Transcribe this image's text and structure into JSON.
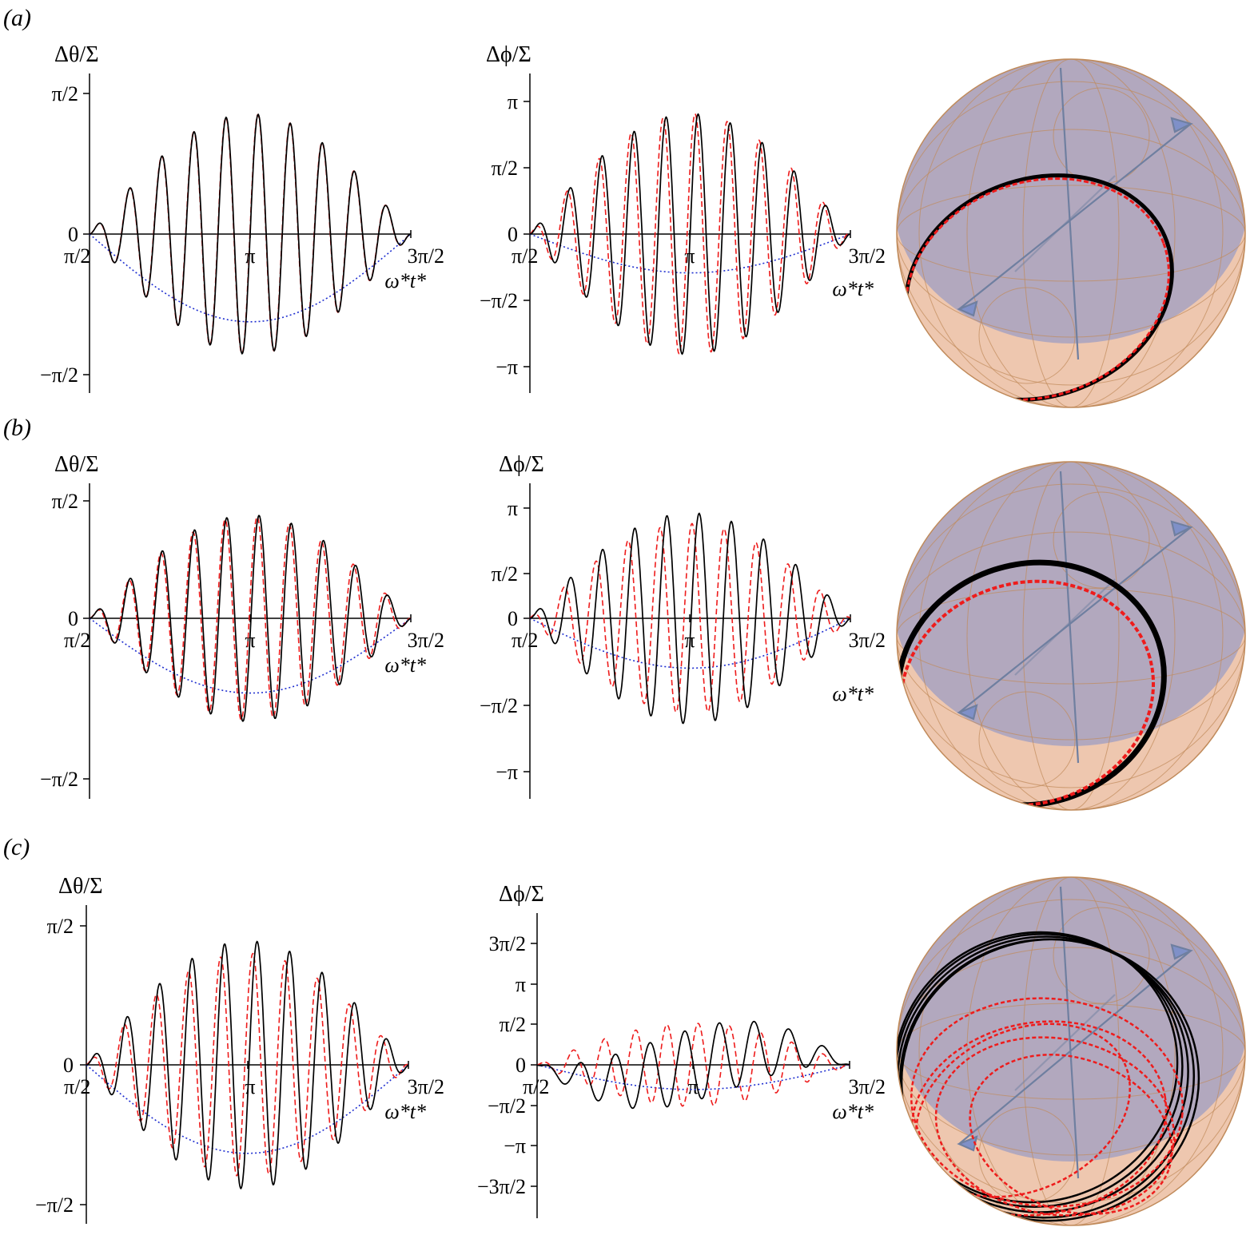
{
  "colors": {
    "black_series": "#000000",
    "red_series": "#ee1c1c",
    "blue_envelope": "#1f2fd0",
    "sphere_fill": "#e8b494",
    "sphere_band": "#9d9dc3",
    "sphere_grid": "#c08a5a",
    "sphere_axis": "#6f7fa0"
  },
  "panels": [
    {
      "label": "(a)",
      "theta_plot": {
        "ylabel": "Δθ/Σ",
        "ytick_labels": [
          "π/2",
          "0",
          "−π/2"
        ],
        "xtick_labels": [
          "π/2",
          "π",
          "3π/2"
        ],
        "xunit": "ω*t*"
      },
      "phi_plot": {
        "ylabel": "Δϕ/Σ",
        "ytick_labels": [
          "π",
          "π/2",
          "0",
          "−π/2",
          "−π"
        ],
        "xtick_labels": [
          "π/2",
          "π",
          "3π/2"
        ],
        "xunit": "ω*t*"
      }
    },
    {
      "label": "(b)",
      "theta_plot": {
        "ylabel": "Δθ/Σ",
        "ytick_labels": [
          "π/2",
          "0",
          "−π/2"
        ],
        "xtick_labels": [
          "π/2",
          "π",
          "3π/2"
        ],
        "xunit": "ω*t*"
      },
      "phi_plot": {
        "ylabel": "Δϕ/Σ",
        "ytick_labels": [
          "π",
          "π/2",
          "0",
          "−π/2",
          "−π"
        ],
        "xtick_labels": [
          "π/2",
          "π",
          "3π/2"
        ],
        "xunit": "ω*t*"
      }
    },
    {
      "label": "(c)",
      "theta_plot": {
        "ylabel": "Δθ/Σ",
        "ytick_labels": [
          "π/2",
          "0",
          "−π/2"
        ],
        "xtick_labels": [
          "π/2",
          "π",
          "3π/2"
        ],
        "xunit": "ω*t*"
      },
      "phi_plot": {
        "ylabel": "Δϕ/Σ",
        "ytick_labels": [
          "3π/2",
          "π",
          "π/2",
          "0",
          "−π/2",
          "−π",
          "−3π/2"
        ],
        "xtick_labels": [
          "π/2",
          "π",
          "3π/2"
        ],
        "xunit": "ω*t*"
      }
    }
  ],
  "chart_data": [
    {
      "panel": "(a)",
      "type": "line",
      "ylabel": "Δθ/Σ",
      "xlabel": "ω*t*",
      "xlim": [
        1.5708,
        4.7124
      ],
      "ylim": [
        -1.85,
        1.85
      ],
      "yticks": [
        1.5708,
        0,
        -1.5708
      ],
      "xticks": [
        1.5708,
        3.1416,
        4.7124
      ],
      "series": [
        {
          "role": "black solid",
          "style": "solid",
          "cycles": 10,
          "peak": 1.34,
          "phase": 0.0,
          "freq_shift": 0.0,
          "drift": 0
        },
        {
          "role": "red dashed",
          "style": "dashed",
          "cycles": 10,
          "peak": 1.34,
          "phase": 0.05,
          "freq_shift": 0.0,
          "drift": 0
        },
        {
          "role": "blue dotted envelope",
          "style": "dotted",
          "min": -0.98
        }
      ]
    },
    {
      "panel": "(a)",
      "type": "line",
      "ylabel": "Δϕ/Σ",
      "xlabel": "ω*t*",
      "xlim": [
        1.5708,
        4.7124
      ],
      "ylim": [
        -3.55,
        3.55
      ],
      "yticks": [
        3.1416,
        1.5708,
        0,
        -1.5708,
        -3.1416
      ],
      "xticks": [
        1.5708,
        3.1416,
        4.7124
      ],
      "series": [
        {
          "role": "black solid",
          "style": "solid",
          "cycles": 10,
          "peak": 2.85,
          "phase": 0.0,
          "freq_shift": 0.0,
          "drift": 0
        },
        {
          "role": "red dashed",
          "style": "dashed",
          "cycles": 10,
          "peak": 2.85,
          "phase": 0.6,
          "freq_shift": 0.0,
          "drift": 0
        },
        {
          "role": "blue dotted envelope",
          "style": "dotted",
          "min": -0.92
        }
      ]
    },
    {
      "panel": "(b)",
      "type": "line",
      "ylabel": "Δθ/Σ",
      "xlabel": "ω*t*",
      "xlim": [
        1.5708,
        4.7124
      ],
      "ylim": [
        -1.85,
        1.85
      ],
      "yticks": [
        1.5708,
        0,
        -1.5708
      ],
      "xticks": [
        1.5708,
        3.1416,
        4.7124
      ],
      "series": [
        {
          "role": "black solid",
          "style": "solid",
          "cycles": 10,
          "peak": 1.38,
          "phase": 0.0,
          "freq_shift": -0.05,
          "drift": 0
        },
        {
          "role": "red dashed",
          "style": "dashed",
          "cycles": 10,
          "peak": 1.36,
          "phase": 0.2,
          "freq_shift": 0.0,
          "drift": 0
        },
        {
          "role": "blue dotted envelope",
          "style": "dotted",
          "min": -1.0
        }
      ]
    },
    {
      "panel": "(b)",
      "type": "line",
      "ylabel": "Δϕ/Σ",
      "xlabel": "ω*t*",
      "xlim": [
        1.5708,
        4.7124
      ],
      "ylim": [
        -3.55,
        3.55
      ],
      "yticks": [
        3.1416,
        1.5708,
        0,
        -1.5708,
        -3.1416
      ],
      "xticks": [
        1.5708,
        3.1416,
        4.7124
      ],
      "series": [
        {
          "role": "black solid",
          "style": "solid",
          "cycles": 10,
          "peak": 3.0,
          "phase": 0.0,
          "freq_shift": -0.06,
          "drift": 0
        },
        {
          "role": "red dashed",
          "style": "dashed",
          "cycles": 10,
          "peak": 2.7,
          "phase": 1.2,
          "freq_shift": 0.0,
          "drift": 0
        },
        {
          "role": "blue dotted envelope",
          "style": "dotted",
          "min": -1.42
        }
      ]
    },
    {
      "panel": "(c)",
      "type": "line",
      "ylabel": "Δθ/Σ",
      "xlabel": "ω*t*",
      "xlim": [
        1.5708,
        4.7124
      ],
      "ylim": [
        -1.85,
        1.85
      ],
      "yticks": [
        1.5708,
        0,
        -1.5708
      ],
      "xticks": [
        1.5708,
        3.1416,
        4.7124
      ],
      "series": [
        {
          "role": "black solid",
          "style": "solid",
          "cycles": 10,
          "peak": 1.4,
          "phase": 0.0,
          "freq_shift": -0.1,
          "drift": 0
        },
        {
          "role": "red dashed",
          "style": "dashed",
          "cycles": 10,
          "peak": 1.26,
          "phase": 0.5,
          "freq_shift": 0.0,
          "drift": 0
        },
        {
          "role": "blue dotted envelope",
          "style": "dotted",
          "min": -1.0
        }
      ]
    },
    {
      "panel": "(c)",
      "type": "line",
      "ylabel": "Δϕ/Σ",
      "xlabel": "ω*t*",
      "xlim": [
        1.5708,
        4.7124
      ],
      "ylim": [
        -5.25,
        5.25
      ],
      "yticks": [
        4.7124,
        3.1416,
        1.5708,
        0,
        -1.5708,
        -3.1416,
        -4.7124
      ],
      "xticks": [
        1.5708,
        3.1416,
        4.7124
      ],
      "series": [
        {
          "role": "black solid",
          "style": "solid",
          "cycles": 9,
          "peak": 1.4,
          "phase": 0.0,
          "freq_shift": 0.0,
          "drift": 3.3
        },
        {
          "role": "red dashed",
          "style": "dashed",
          "cycles": 10,
          "peak": 1.6,
          "phase": 0.6,
          "freq_shift": 0.0,
          "drift": 0
        },
        {
          "role": "blue dotted envelope",
          "style": "dotted",
          "min": -0.95
        }
      ]
    }
  ]
}
